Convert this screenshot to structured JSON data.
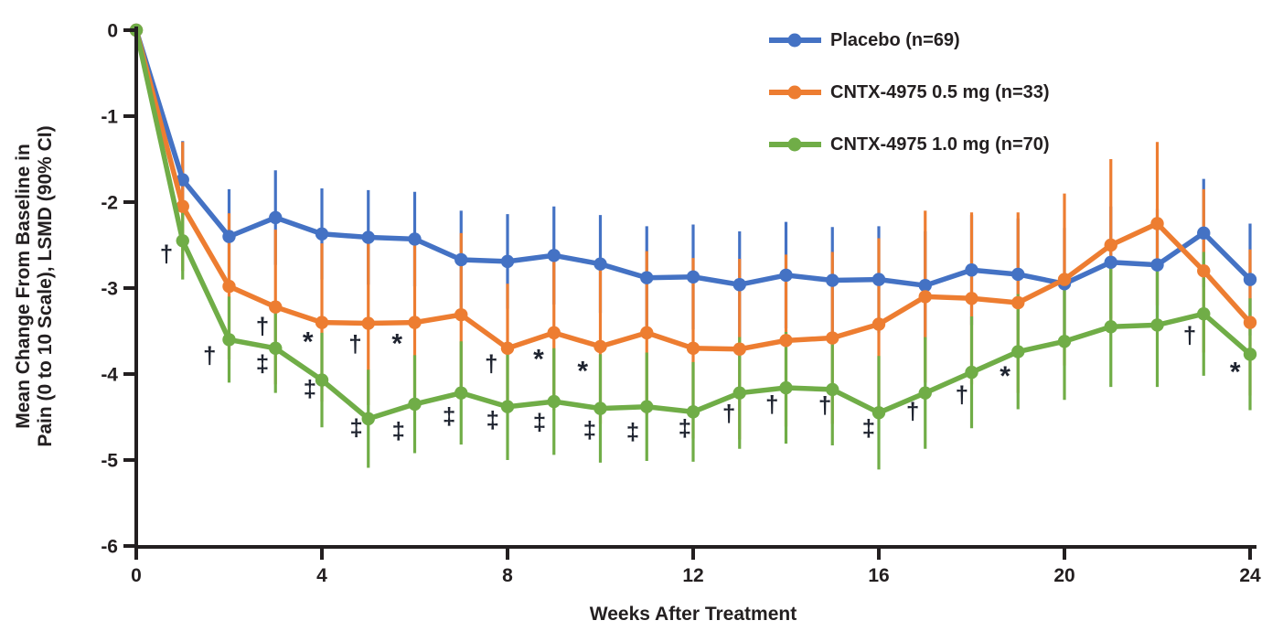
{
  "chart_data": {
    "type": "line",
    "title": "",
    "xlabel": "Weeks After Treatment",
    "ylabel_line1": "Mean Change From Baseline in",
    "ylabel_line2": "Pain (0 to 10 Scale), LSMD (90% CI)",
    "error_bars": "90% CI",
    "grid": false,
    "legend_position": "top-right",
    "x_axis": {
      "min": 0,
      "max": 24,
      "ticks": [
        0,
        4,
        8,
        12,
        16,
        20,
        24
      ]
    },
    "y_axis": {
      "min": -6,
      "max": 0,
      "ticks": [
        0,
        -1,
        -2,
        -3,
        -4,
        -5,
        -6
      ]
    },
    "colors": {
      "axis": "#231f20",
      "text": "#231f20",
      "symbol": "#1f2430"
    },
    "x": [
      0,
      1,
      2,
      3,
      4,
      5,
      6,
      7,
      8,
      9,
      10,
      11,
      12,
      13,
      14,
      15,
      16,
      17,
      18,
      19,
      20,
      21,
      22,
      23,
      24
    ],
    "series": [
      {
        "name": "Placebo (n=69)",
        "color": "#4472c4",
        "values": [
          0,
          -1.74,
          -2.4,
          -2.18,
          -2.37,
          -2.41,
          -2.43,
          -2.67,
          -2.69,
          -2.62,
          -2.72,
          -2.88,
          -2.87,
          -2.96,
          -2.85,
          -2.91,
          -2.9,
          -2.97,
          -2.79,
          -2.84,
          -2.95,
          -2.7,
          -2.73,
          -2.36,
          -2.9
        ],
        "ci": [
          0,
          0.45,
          0.55,
          0.55,
          0.53,
          0.55,
          0.55,
          0.57,
          0.55,
          0.57,
          0.57,
          0.6,
          0.61,
          0.62,
          0.62,
          0.62,
          0.62,
          0.63,
          0.64,
          0.65,
          0.65,
          0.65,
          0.65,
          0.63,
          0.65
        ]
      },
      {
        "name": "CNTX-4975 0.5 mg (n=33)",
        "color": "#ed7d31",
        "values": [
          0,
          -2.05,
          -2.98,
          -3.22,
          -3.4,
          -3.41,
          -3.4,
          -3.31,
          -3.7,
          -3.52,
          -3.68,
          -3.52,
          -3.7,
          -3.71,
          -3.61,
          -3.58,
          -3.42,
          -3.1,
          -3.12,
          -3.17,
          -2.9,
          -2.5,
          -2.25,
          -2.8,
          -3.4
        ],
        "ci": [
          0,
          0.75,
          0.85,
          0.9,
          0.92,
          0.95,
          0.95,
          0.95,
          0.75,
          0.9,
          0.9,
          0.95,
          1.05,
          1.05,
          1.0,
          1.0,
          1.0,
          1.0,
          1.0,
          1.05,
          1.0,
          1.0,
          0.95,
          0.95,
          0.85
        ]
      },
      {
        "name": "CNTX-4975 1.0 mg (n=70)",
        "color": "#70ad47",
        "values": [
          0,
          -2.45,
          -3.6,
          -3.7,
          -4.07,
          -4.52,
          -4.35,
          -4.22,
          -4.38,
          -4.32,
          -4.4,
          -4.38,
          -4.44,
          -4.22,
          -4.16,
          -4.18,
          -4.45,
          -4.22,
          -3.98,
          -3.74,
          -3.62,
          -3.45,
          -3.43,
          -3.3,
          -3.77
        ],
        "ci": [
          0,
          0.45,
          0.5,
          0.52,
          0.55,
          0.57,
          0.57,
          0.6,
          0.62,
          0.62,
          0.63,
          0.63,
          0.58,
          0.65,
          0.65,
          0.65,
          0.66,
          0.65,
          0.65,
          0.67,
          0.68,
          0.7,
          0.72,
          0.72,
          0.65
        ]
      }
    ],
    "annotations": [
      {
        "symbol": "†",
        "week": 0.65,
        "value": -2.6
      },
      {
        "symbol": "†",
        "week": 1.58,
        "value": -3.78
      },
      {
        "symbol": "†",
        "week": 2.72,
        "value": -3.44
      },
      {
        "symbol": "‡",
        "week": 2.72,
        "value": -3.88
      },
      {
        "symbol": "*",
        "week": 3.7,
        "value": -3.57
      },
      {
        "symbol": "‡",
        "week": 3.74,
        "value": -4.17
      },
      {
        "symbol": "†",
        "week": 4.72,
        "value": -3.65
      },
      {
        "symbol": "‡",
        "week": 4.74,
        "value": -4.62
      },
      {
        "symbol": "*",
        "week": 5.62,
        "value": -3.59
      },
      {
        "symbol": "‡",
        "week": 5.65,
        "value": -4.66
      },
      {
        "symbol": "‡",
        "week": 6.74,
        "value": -4.49
      },
      {
        "symbol": "†",
        "week": 7.65,
        "value": -3.88
      },
      {
        "symbol": "‡",
        "week": 7.68,
        "value": -4.53
      },
      {
        "symbol": "*",
        "week": 8.67,
        "value": -3.77
      },
      {
        "symbol": "‡",
        "week": 8.69,
        "value": -4.56
      },
      {
        "symbol": "*",
        "week": 9.62,
        "value": -3.91
      },
      {
        "symbol": "‡",
        "week": 9.77,
        "value": -4.65
      },
      {
        "symbol": "‡",
        "week": 10.7,
        "value": -4.67
      },
      {
        "symbol": "‡",
        "week": 11.82,
        "value": -4.63
      },
      {
        "symbol": "†",
        "week": 12.77,
        "value": -4.46
      },
      {
        "symbol": "†",
        "week": 13.7,
        "value": -4.35
      },
      {
        "symbol": "†",
        "week": 14.84,
        "value": -4.36
      },
      {
        "symbol": "‡",
        "week": 15.78,
        "value": -4.63
      },
      {
        "symbol": "†",
        "week": 16.73,
        "value": -4.43
      },
      {
        "symbol": "†",
        "week": 17.79,
        "value": -4.24
      },
      {
        "symbol": "*",
        "week": 18.72,
        "value": -3.97
      },
      {
        "symbol": "†",
        "week": 22.7,
        "value": -3.55
      },
      {
        "symbol": "*",
        "week": 23.68,
        "value": -3.92
      }
    ]
  }
}
